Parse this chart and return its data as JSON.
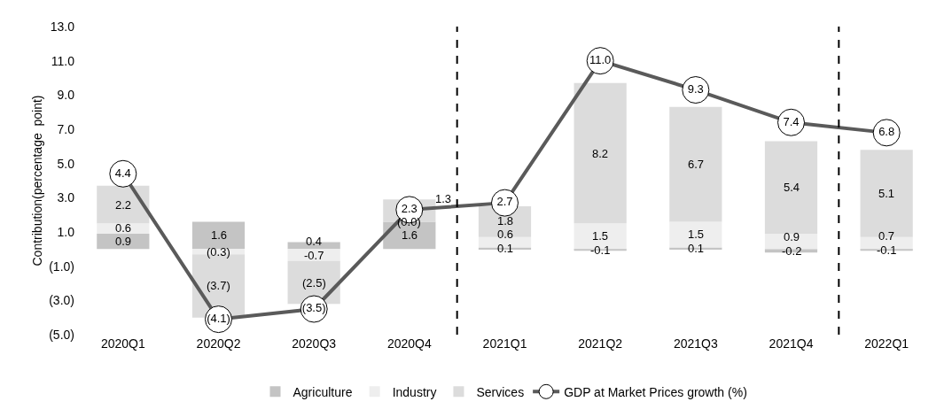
{
  "chart_data": {
    "type": "bar",
    "stacked": true,
    "ylabel": "Contribution(percentage  point)",
    "categories": [
      "2020Q1",
      "2020Q2",
      "2020Q3",
      "2020Q4",
      "2021Q1",
      "2021Q2",
      "2021Q3",
      "2021Q4",
      "2022Q1"
    ],
    "series": [
      {
        "name": "Agriculture",
        "color": "#c4c4c4",
        "values": [
          0.9,
          1.6,
          0.4,
          1.6,
          0.1,
          -0.1,
          0.1,
          -0.2,
          -0.1
        ],
        "value_labels": [
          "0.9",
          "1.6",
          "0.4",
          "1.6",
          "0.1",
          "-0.1",
          "0.1",
          "-0.2",
          "-0.1"
        ]
      },
      {
        "name": "Industry",
        "color": "#eeeeee",
        "values": [
          0.6,
          -0.3,
          -0.7,
          0.0,
          0.6,
          1.5,
          1.5,
          0.9,
          0.7
        ],
        "value_labels": [
          "0.6",
          "(0.3)",
          "-0.7",
          "(0.0)",
          "0.6",
          "1.5",
          "1.5",
          "0.9",
          "0.7"
        ]
      },
      {
        "name": "Services",
        "color": "#dcdcdc",
        "values": [
          2.2,
          -3.7,
          -2.5,
          1.3,
          1.8,
          8.2,
          6.7,
          5.4,
          5.1
        ],
        "value_labels": [
          "2.2",
          "(3.7)",
          "(2.5)",
          "1.3",
          "1.8",
          "8.2",
          "6.7",
          "5.4",
          "5.1"
        ]
      },
      {
        "name": "GDP at Market Prices growth (%)",
        "type": "line",
        "color": "#5a5a5a",
        "marker": "circle",
        "values": [
          4.4,
          -4.1,
          -3.5,
          2.3,
          2.7,
          11.0,
          9.3,
          7.4,
          6.8
        ],
        "value_labels": [
          "4.4",
          "(4.1)",
          "(3.5)",
          "2.3",
          "2.7",
          "11.0",
          "9.3",
          "7.4",
          "6.8"
        ]
      }
    ],
    "ylim": [
      -5,
      13
    ],
    "yticks": [
      {
        "value": -5,
        "label": "(5.0)"
      },
      {
        "value": -3,
        "label": "(3.0)"
      },
      {
        "value": -1,
        "label": "(1.0)"
      },
      {
        "value": 1,
        "label": "1.0"
      },
      {
        "value": 3,
        "label": "3.0"
      },
      {
        "value": 5,
        "label": "5.0"
      },
      {
        "value": 7,
        "label": "7.0"
      },
      {
        "value": 9,
        "label": "9.0"
      },
      {
        "value": 11,
        "label": "11.0"
      },
      {
        "value": 13,
        "label": "13.0"
      }
    ],
    "grid": false,
    "legend": "bottom"
  }
}
